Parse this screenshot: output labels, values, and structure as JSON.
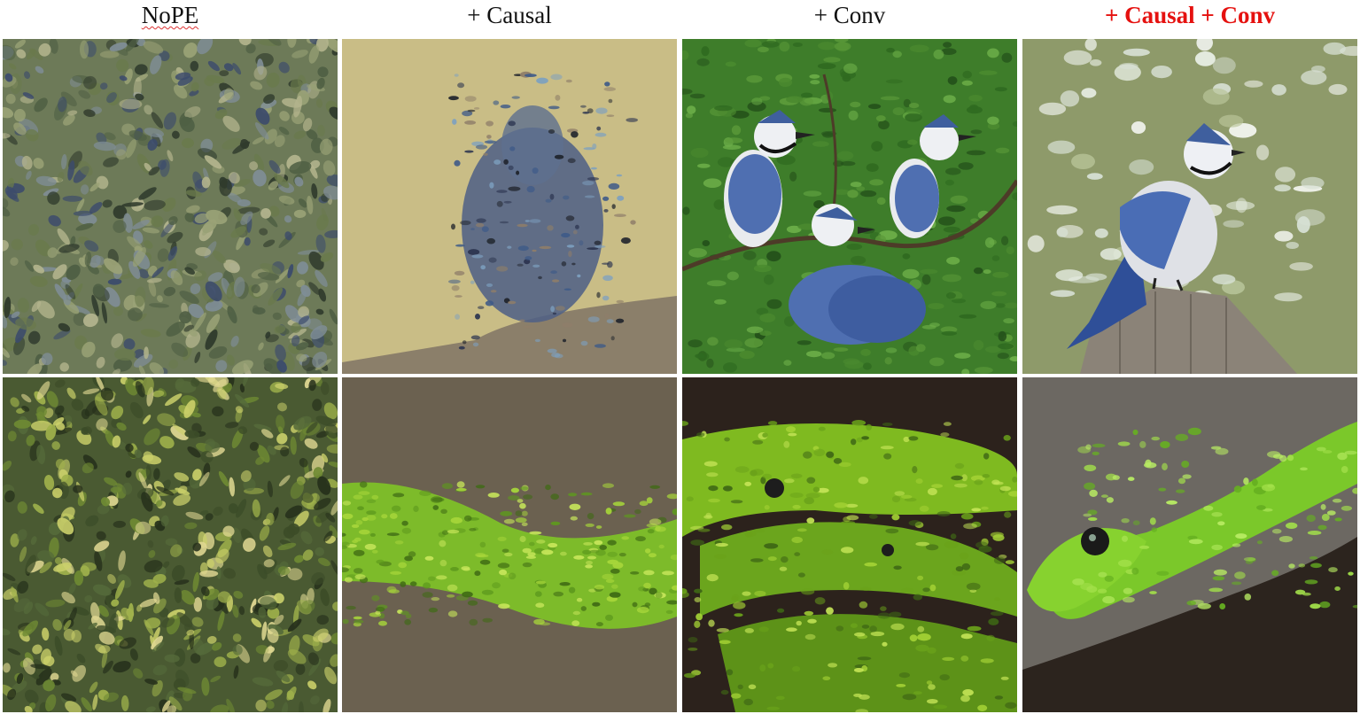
{
  "columns": [
    {
      "label": "NoPE",
      "highlight": false
    },
    {
      "label": "+ Causal",
      "highlight": false
    },
    {
      "label": "+ Conv",
      "highlight": false
    },
    {
      "label": "+ Causal + Conv",
      "highlight": true
    }
  ],
  "rows": [
    {
      "subject": "blue-jay"
    },
    {
      "subject": "green-snake"
    }
  ],
  "colors": {
    "highlight": "#e5110f",
    "jay_blue": "#3f5f9e",
    "snake_green": "#7fc428",
    "foliage": "#3e7d2a"
  }
}
